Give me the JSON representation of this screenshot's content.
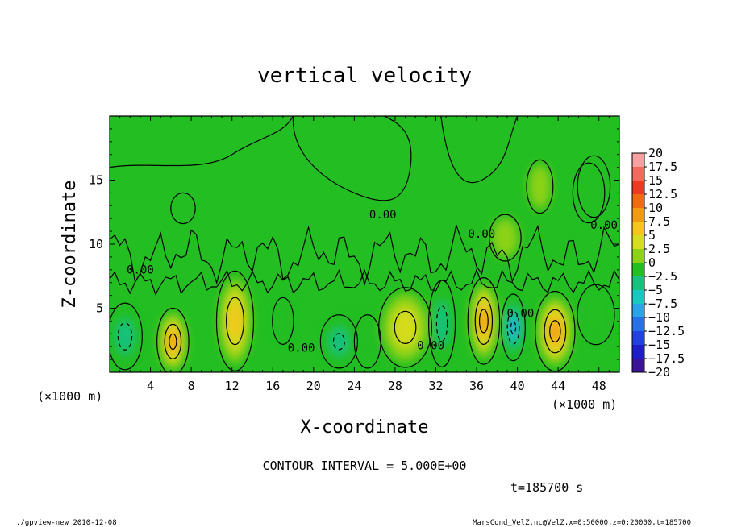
{
  "chart_data": {
    "type": "heatmap",
    "title": "vertical velocity",
    "xlabel": "X-coordinate",
    "ylabel": "Z-coordinate",
    "x_unit": "(×1000 m)",
    "y_unit": "(×1000 m)",
    "xlim": [
      0,
      50
    ],
    "ylim": [
      0,
      20
    ],
    "x_ticks": [
      4,
      8,
      12,
      16,
      20,
      24,
      28,
      32,
      36,
      40,
      44,
      48
    ],
    "y_ticks": [
      5,
      10,
      15
    ],
    "background_value": 0,
    "cells": [
      {
        "x": 1.5,
        "z": 2.8,
        "sx": 1.3,
        "sz": 2.0,
        "w": -7
      },
      {
        "x": 6.2,
        "z": 2.4,
        "sx": 1.2,
        "sz": 2.0,
        "w": 11
      },
      {
        "x": 12.3,
        "z": 4.0,
        "sx": 1.4,
        "sz": 3.0,
        "w": 9
      },
      {
        "x": 17.0,
        "z": 4.0,
        "sx": 0.8,
        "sz": 1.4,
        "w": -4
      },
      {
        "x": 22.5,
        "z": 2.4,
        "sx": 1.4,
        "sz": 1.6,
        "w": -5
      },
      {
        "x": 25.3,
        "z": 2.4,
        "sx": 1.0,
        "sz": 1.6,
        "w": -4
      },
      {
        "x": 29.0,
        "z": 3.5,
        "sx": 2.0,
        "sz": 2.4,
        "w": 7
      },
      {
        "x": 32.6,
        "z": 3.8,
        "sx": 1.0,
        "sz": 2.6,
        "w": -7
      },
      {
        "x": 36.7,
        "z": 4.0,
        "sx": 1.2,
        "sz": 2.6,
        "w": 12
      },
      {
        "x": 39.6,
        "z": 3.5,
        "sx": 0.9,
        "sz": 2.0,
        "w": -10
      },
      {
        "x": 43.7,
        "z": 3.2,
        "sx": 1.5,
        "sz": 2.4,
        "w": 12
      },
      {
        "x": 47.7,
        "z": 4.5,
        "sx": 1.4,
        "sz": 1.8,
        "w": -4
      },
      {
        "x": 38.8,
        "z": 10.5,
        "sx": 1.2,
        "sz": 1.4,
        "w": 3
      },
      {
        "x": 42.2,
        "z": 14.5,
        "sx": 1.0,
        "sz": 1.6,
        "w": 3
      },
      {
        "x": 47.0,
        "z": 14.0,
        "sx": 1.2,
        "sz": 1.8,
        "w": 2
      }
    ],
    "contour_interval": "5.000E+00",
    "contour_level_labels": [
      {
        "x": 3.0,
        "z": 7.7,
        "text": "0.00"
      },
      {
        "x": 18.8,
        "z": 1.6,
        "text": "0.00"
      },
      {
        "x": 26.8,
        "z": 12.0,
        "text": "0.00"
      },
      {
        "x": 31.5,
        "z": 1.8,
        "text": "0.00"
      },
      {
        "x": 36.5,
        "z": 10.5,
        "text": "0.00"
      },
      {
        "x": 40.3,
        "z": 4.3,
        "text": "0.00"
      },
      {
        "x": 48.5,
        "z": 11.2,
        "text": "0.00"
      }
    ],
    "colorbar": {
      "levels": [
        20,
        17.5,
        15,
        12.5,
        10,
        7.5,
        5,
        2.5,
        0,
        -2.5,
        -5,
        -7.5,
        -10,
        -12.5,
        -15,
        -17.5,
        -20
      ],
      "colors": [
        "#f7a0a0",
        "#f26a5c",
        "#ee3a22",
        "#f06a12",
        "#f29a14",
        "#f4c61c",
        "#d6dc1e",
        "#8cd219",
        "#22be22",
        "#18c27e",
        "#18c8c0",
        "#2aa4e6",
        "#2870e6",
        "#2242e0",
        "#1e1ec6",
        "#3a1494"
      ]
    }
  },
  "annotations": {
    "contour_interval_text": "CONTOUR INTERVAL = 5.000E+00",
    "time_text": "t=185700 s",
    "footer_left": "./gpview-new 2010-12-08",
    "footer_right": "MarsCond_VelZ.nc@VelZ,x=0:50000,z=0:20000,t=185700"
  }
}
